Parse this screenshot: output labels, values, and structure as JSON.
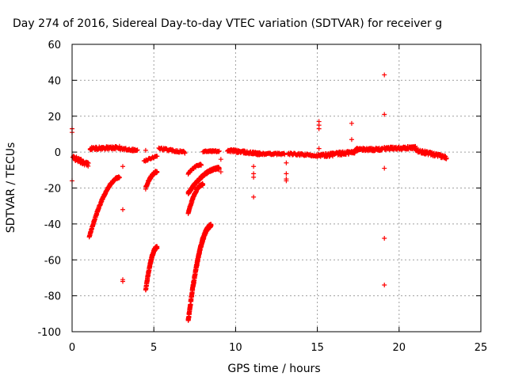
{
  "chart_data": {
    "type": "scatter",
    "title": "Day 274 of 2016, Sidereal Day-to-day VTEC variation (SDTVAR) for receiver g",
    "xlabel": "GPS time / hours",
    "ylabel": "SDTVAR / TECUs",
    "xlim": [
      0,
      25
    ],
    "ylim": [
      -100,
      60
    ],
    "xticks": [
      "0",
      "5",
      "10",
      "15",
      "20",
      "25"
    ],
    "yticks": [
      "60",
      "40",
      "20",
      "0",
      "-20",
      "-40",
      "-60",
      "-80",
      "-100"
    ],
    "grid": true,
    "marker": "+",
    "color": "#ff0000",
    "series": [
      {
        "segments": [
          {
            "x0": 0.05,
            "x1": 1.0,
            "y0": -3,
            "y1": -7,
            "step": 0.02,
            "jitter": 2.5
          },
          {
            "x0": 1.1,
            "x1": 2.9,
            "y0": 2,
            "y1": 2.5,
            "step": 0.02,
            "jitter": 1.5
          },
          {
            "x0": 2.9,
            "x1": 4.0,
            "y0": 2,
            "y1": 1,
            "step": 0.03,
            "jitter": 1.2
          },
          {
            "x0": 5.3,
            "x1": 6.9,
            "y0": 2,
            "y1": 0,
            "step": 0.03,
            "jitter": 1.3
          },
          {
            "x0": 8.0,
            "x1": 9.0,
            "y0": 0.5,
            "y1": 0.5,
            "step": 0.03,
            "jitter": 0.8
          },
          {
            "x0": 9.5,
            "x1": 11.5,
            "y0": 1,
            "y1": -1,
            "step": 0.02,
            "jitter": 1.5
          },
          {
            "x0": 11.5,
            "x1": 13.0,
            "y0": -1,
            "y1": -1,
            "step": 0.03,
            "jitter": 1.0
          },
          {
            "x0": 13.2,
            "x1": 15.2,
            "y0": -1,
            "y1": -2,
            "step": 0.03,
            "jitter": 1.2
          },
          {
            "x0": 15.2,
            "x1": 17.3,
            "y0": -2,
            "y1": 0,
            "step": 0.02,
            "jitter": 2.0
          },
          {
            "x0": 17.3,
            "x1": 19.0,
            "y0": 1.5,
            "y1": 1.5,
            "step": 0.02,
            "jitter": 1.5
          },
          {
            "x0": 19.1,
            "x1": 21.0,
            "y0": 2,
            "y1": 2.5,
            "step": 0.02,
            "jitter": 1.5
          },
          {
            "x0": 21.0,
            "x1": 22.9,
            "y0": 1,
            "y1": -3,
            "step": 0.02,
            "jitter": 1.8
          },
          {
            "x0": 1.05,
            "x1": 2.9,
            "y0": -47,
            "y1": -14,
            "step": 0.01,
            "jitter": 1.0,
            "curve": 0.5
          },
          {
            "x0": 4.5,
            "x1": 5.2,
            "y0": -77,
            "y1": -53,
            "step": 0.005,
            "jitter": 1.5,
            "curve": 0.6
          },
          {
            "x0": 4.5,
            "x1": 5.2,
            "y0": -20,
            "y1": -11,
            "step": 0.01,
            "jitter": 1.2,
            "curve": 0.6
          },
          {
            "x0": 7.1,
            "x1": 8.5,
            "y0": -94,
            "y1": -41,
            "step": 0.004,
            "jitter": 2.0,
            "curve": 0.6
          },
          {
            "x0": 7.1,
            "x1": 8.0,
            "y0": -34,
            "y1": -18,
            "step": 0.008,
            "jitter": 1.2,
            "curve": 0.6
          },
          {
            "x0": 7.1,
            "x1": 9.0,
            "y0": -23,
            "y1": -9,
            "step": 0.008,
            "jitter": 1.2,
            "curve": 0.6
          },
          {
            "x0": 7.1,
            "x1": 7.9,
            "y0": -12,
            "y1": -7,
            "step": 0.02,
            "jitter": 0.8,
            "curve": 0.5
          },
          {
            "x0": 4.4,
            "x1": 5.2,
            "y0": -5,
            "y1": -2,
            "step": 0.04,
            "jitter": 0.8
          }
        ],
        "isolated": [
          [
            0.0,
            13
          ],
          [
            0.0,
            11
          ],
          [
            0.0,
            -16
          ],
          [
            3.1,
            -8
          ],
          [
            3.1,
            -32
          ],
          [
            3.1,
            -71
          ],
          [
            3.1,
            -72
          ],
          [
            4.5,
            1
          ],
          [
            9.1,
            -4
          ],
          [
            9.1,
            -11
          ],
          [
            11.1,
            -8
          ],
          [
            11.1,
            -12
          ],
          [
            11.1,
            -14
          ],
          [
            11.1,
            -25
          ],
          [
            13.1,
            -6
          ],
          [
            13.1,
            -12
          ],
          [
            13.1,
            -15
          ],
          [
            13.1,
            -16
          ],
          [
            15.1,
            17
          ],
          [
            15.1,
            15
          ],
          [
            15.1,
            13
          ],
          [
            15.1,
            2
          ],
          [
            17.1,
            16
          ],
          [
            17.1,
            7
          ],
          [
            19.1,
            43
          ],
          [
            19.1,
            21
          ],
          [
            19.1,
            -9
          ],
          [
            19.1,
            -48
          ],
          [
            19.1,
            -74
          ]
        ]
      }
    ]
  }
}
